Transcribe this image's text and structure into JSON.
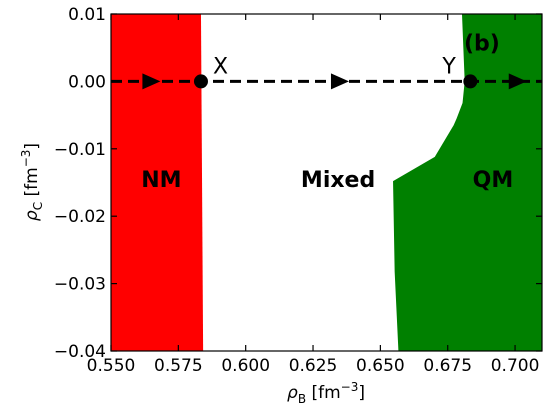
{
  "chart_data": {
    "type": "area",
    "panel_label": "(b)",
    "xlim": [
      0.55,
      0.71
    ],
    "ylim": [
      -0.04,
      0.01
    ],
    "x_ticks": [
      0.55,
      0.575,
      0.6,
      0.625,
      0.65,
      0.675,
      0.7
    ],
    "x_tick_labels": [
      "0.550",
      "0.575",
      "0.600",
      "0.625",
      "0.650",
      "0.675",
      "0.700"
    ],
    "y_ticks": [
      -0.04,
      -0.03,
      -0.02,
      -0.01,
      0.0,
      0.01
    ],
    "y_tick_labels": [
      "−0.04",
      "−0.03",
      "−0.02",
      "−0.01",
      "0.00",
      "0.01"
    ],
    "xlabel": {
      "sym": "ρ",
      "sub": "B",
      "unit": " [fm",
      "exp": "−3",
      "close": "]"
    },
    "ylabel": {
      "sym": "ρ",
      "sub": "C",
      "unit": " [fm",
      "exp": "−3",
      "close": "]"
    },
    "regions": [
      {
        "name": "NM",
        "color": "#ff0000",
        "boundary": [
          [
            0.5834,
            0.01
          ],
          [
            0.5842,
            -0.04
          ]
        ]
      },
      {
        "name": "Mixed",
        "color": "#ffffff",
        "boundary": []
      },
      {
        "name": "QM",
        "color": "#008000",
        "boundary": [
          [
            0.6803,
            0.01
          ],
          [
            0.6813,
            0.0
          ],
          [
            0.6805,
            -0.0032
          ],
          [
            0.6783,
            -0.0055
          ],
          [
            0.6772,
            -0.0065
          ],
          [
            0.6702,
            -0.0112
          ],
          [
            0.6547,
            -0.0148
          ],
          [
            0.6553,
            -0.0282
          ],
          [
            0.6567,
            -0.04
          ]
        ]
      }
    ],
    "path": {
      "y": 0.0,
      "x_start": 0.55,
      "x_end": 0.71,
      "arrows_at_x": [
        0.565,
        0.635,
        0.701
      ]
    },
    "points": [
      {
        "label": "X",
        "x": 0.5834,
        "y": 0.0
      },
      {
        "label": "Y",
        "x": 0.6834,
        "y": 0.0
      }
    ],
    "region_labels": [
      {
        "text": "NM",
        "x": 0.5687,
        "y": -0.0145
      },
      {
        "text": "Mixed",
        "x": 0.6343,
        "y": -0.0145
      },
      {
        "text": "QM",
        "x": 0.6918,
        "y": -0.0145
      }
    ],
    "panel_label_pos": {
      "x": 0.6877,
      "y": 0.0058
    },
    "legend": "none",
    "grid": false
  }
}
